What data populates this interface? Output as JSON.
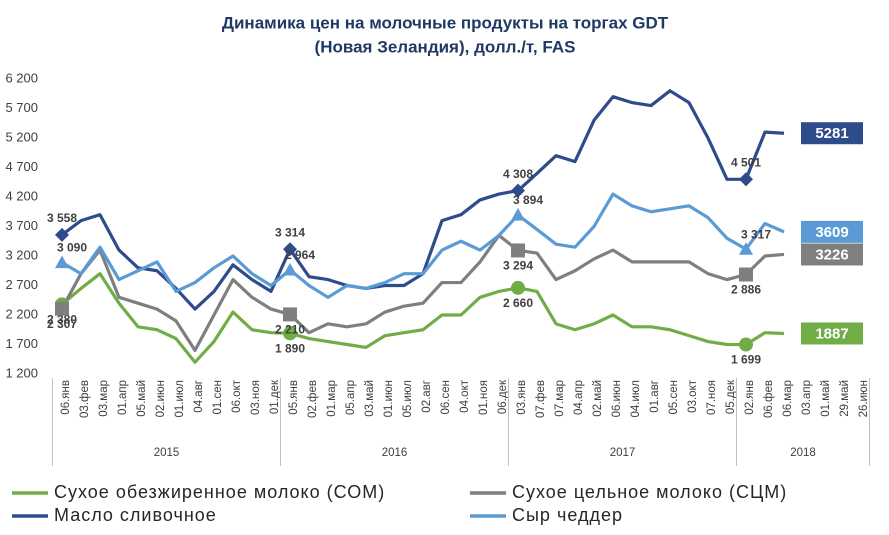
{
  "chart_data": {
    "type": "line",
    "title": "Динамика цен на молочные продукты на торгах GDT",
    "subtitle": "(Новая Зеландия), долл./т, FAS",
    "categories": [
      "06.янв",
      "03.фев",
      "03.мар",
      "01.апр",
      "05.май",
      "02.июн",
      "01.июл",
      "04.авг",
      "01.сен",
      "06.окт",
      "03.ноя",
      "01.дек",
      "05.янв",
      "02.фев",
      "01.мар",
      "05.апр",
      "03.май",
      "01.июн",
      "05.июл",
      "02.авг",
      "06.сен",
      "04.окт",
      "01.ноя",
      "06.дек",
      "03.янв",
      "07.фев",
      "07.мар",
      "04.апр",
      "02.май",
      "06.июн",
      "04.июл",
      "01.авг",
      "05.сен",
      "03.окт",
      "07.ноя",
      "05.дек",
      "02.янв",
      "06.фев",
      "06.мар",
      "03.апр",
      "01.май",
      "29.май",
      "26.июн"
    ],
    "year_groups": [
      {
        "label": "2015",
        "count": 12
      },
      {
        "label": "2016",
        "count": 12
      },
      {
        "label": "2017",
        "count": 12
      },
      {
        "label": "2018",
        "count": 7
      }
    ],
    "ylim": [
      1200,
      6200
    ],
    "yticks": [
      {
        "value": 1200,
        "label": "1 200"
      },
      {
        "value": 1700,
        "label": "1 700"
      },
      {
        "value": 2200,
        "label": "2 200"
      },
      {
        "value": 2700,
        "label": "2 700"
      },
      {
        "value": 3200,
        "label": "3 200"
      },
      {
        "value": 3700,
        "label": "3 700"
      },
      {
        "value": 4200,
        "label": "4 200"
      },
      {
        "value": 4700,
        "label": "4 700"
      },
      {
        "value": 5200,
        "label": "5 200"
      },
      {
        "value": 5700,
        "label": "5 700"
      },
      {
        "value": 6200,
        "label": "6 200"
      }
    ],
    "grid": false,
    "series": [
      {
        "name": "Сухое обезжиренное молоко (СОМ)",
        "color": "#70ad47",
        "marker": "circle",
        "values": [
          2380,
          2650,
          2900,
          2400,
          2000,
          1950,
          1800,
          1400,
          1750,
          2250,
          1950,
          1900,
          1890,
          1800,
          1750,
          1700,
          1650,
          1850,
          1900,
          1950,
          2200,
          2200,
          2500,
          2600,
          2660,
          2600,
          2050,
          1950,
          2050,
          2200,
          2000,
          2000,
          1950,
          1850,
          1750,
          1700,
          1699,
          1900,
          1887,
          null,
          null,
          null,
          null
        ],
        "value_labels": [
          "2 380",
          null,
          null,
          null,
          null,
          null,
          null,
          null,
          null,
          null,
          null,
          null,
          "1 890",
          null,
          null,
          null,
          null,
          null,
          null,
          null,
          null,
          null,
          null,
          null,
          "2 660",
          null,
          null,
          null,
          null,
          null,
          null,
          null,
          null,
          null,
          null,
          null,
          "1 699",
          null,
          null,
          null,
          null,
          null,
          null
        ]
      },
      {
        "name": "Сухое цельное молоко (СЦМ)",
        "color": "#7f7f7f",
        "marker": "square",
        "values": [
          2307,
          2900,
          3300,
          2500,
          2400,
          2300,
          2100,
          1600,
          2200,
          2800,
          2500,
          2300,
          2210,
          1900,
          2050,
          2000,
          2050,
          2250,
          2350,
          2400,
          2750,
          2750,
          3100,
          3550,
          3294,
          3250,
          2800,
          2950,
          3150,
          3300,
          3100,
          3100,
          3100,
          3100,
          2900,
          2800,
          2886,
          3200,
          3226,
          null,
          null,
          null,
          null
        ],
        "value_labels": [
          "2 307",
          null,
          null,
          null,
          null,
          null,
          null,
          null,
          null,
          null,
          null,
          null,
          "2 210",
          null,
          null,
          null,
          null,
          null,
          null,
          null,
          null,
          null,
          null,
          null,
          "3 294",
          null,
          null,
          null,
          null,
          null,
          null,
          null,
          null,
          null,
          null,
          null,
          "2 886",
          null,
          null,
          null,
          null,
          null,
          null
        ]
      },
      {
        "name": "Масло сливочное",
        "color": "#2e4b8b",
        "marker": "diamond",
        "values": [
          3558,
          3800,
          3900,
          3300,
          3000,
          2950,
          2650,
          2300,
          2600,
          3050,
          2800,
          2600,
          3314,
          2850,
          2800,
          2700,
          2650,
          2700,
          2700,
          2900,
          3800,
          3900,
          4150,
          4250,
          4308,
          4600,
          4900,
          4800,
          5500,
          5900,
          5800,
          5750,
          6000,
          5800,
          5200,
          4500,
          4501,
          5300,
          5281,
          null,
          null,
          null,
          null
        ],
        "value_labels": [
          "3 558",
          null,
          null,
          null,
          null,
          null,
          null,
          null,
          null,
          null,
          null,
          null,
          "3 314",
          null,
          null,
          null,
          null,
          null,
          null,
          null,
          null,
          null,
          null,
          null,
          "4 308",
          null,
          null,
          null,
          null,
          null,
          null,
          null,
          null,
          null,
          null,
          null,
          "4 501",
          null,
          null,
          null,
          null,
          null,
          null
        ]
      },
      {
        "name": "Сыр чеддер",
        "color": "#5b9bd5",
        "marker": "triangle",
        "values": [
          3090,
          2900,
          3350,
          2800,
          2950,
          3100,
          2600,
          2750,
          3000,
          3200,
          2900,
          2700,
          2964,
          2700,
          2500,
          2700,
          2650,
          2750,
          2900,
          2900,
          3300,
          3450,
          3300,
          3550,
          3894,
          3650,
          3400,
          3350,
          3700,
          4250,
          4050,
          3950,
          4000,
          4050,
          3850,
          3500,
          3317,
          3750,
          3609,
          null,
          null,
          null,
          null
        ],
        "value_labels": [
          "3 090",
          null,
          null,
          null,
          null,
          null,
          null,
          null,
          null,
          null,
          null,
          null,
          "2 964",
          null,
          null,
          null,
          null,
          null,
          null,
          null,
          null,
          null,
          null,
          null,
          "3 894",
          null,
          null,
          null,
          null,
          null,
          null,
          null,
          null,
          null,
          null,
          null,
          "3 317",
          null,
          null,
          null,
          null,
          null,
          null
        ]
      }
    ]
  }
}
